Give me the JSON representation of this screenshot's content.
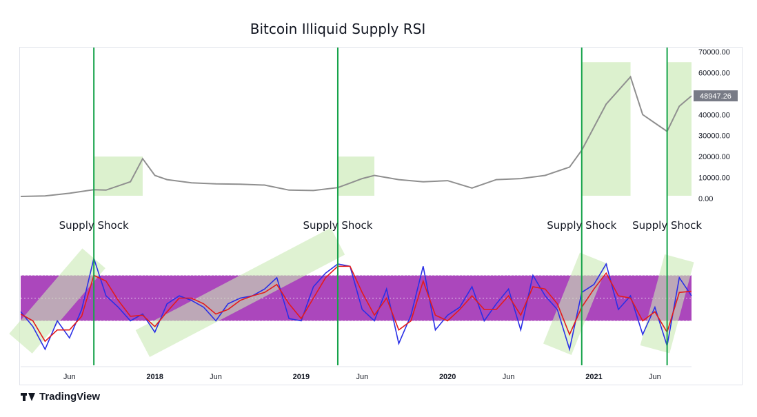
{
  "title": "Bitcoin Illiquid Supply RSI",
  "brand": "TradingView",
  "colors": {
    "price_line": "#8f8f8f",
    "rsi_blue": "#2a2fe6",
    "rsi_red": "#e31b1b",
    "rsi_band": "#9c27b0",
    "highlight": "#c9eab4",
    "shock_line": "#16a34a",
    "price_tag": "#787b86"
  },
  "chart_data": [
    {
      "type": "line",
      "title": "Bitcoin Illiquid Supply RSI",
      "y_axis_ticks": [
        "70000.00",
        "60000.00",
        "50000.00",
        "40000.00",
        "30000.00",
        "20000.00",
        "10000.00",
        "0.00"
      ],
      "ylim": [
        0,
        70000
      ],
      "last_value_label": "48947.26",
      "x_axis_ticks": [
        "Jun",
        "2018",
        "Jun",
        "2019",
        "Jun",
        "2020",
        "Jun",
        "2021",
        "Jun"
      ],
      "x_range": [
        "2017-02",
        "2021-09"
      ],
      "series": [
        {
          "x": [
            "2017-02",
            "2017-04",
            "2017-06",
            "2017-08",
            "2017-09",
            "2017-11",
            "2017-12",
            "2018-01",
            "2018-02",
            "2018-04",
            "2018-06",
            "2018-08",
            "2018-10",
            "2018-12",
            "2019-02",
            "2019-04",
            "2019-06",
            "2019-07",
            "2019-09",
            "2019-11",
            "2020-01",
            "2020-03",
            "2020-05",
            "2020-07",
            "2020-09",
            "2020-11",
            "2020-12",
            "2021-01",
            "2021-02",
            "2021-04",
            "2021-05",
            "2021-06",
            "2021-07",
            "2021-08",
            "2021-09"
          ],
          "values": [
            1000,
            1200,
            2500,
            4200,
            4000,
            8000,
            19000,
            11000,
            9000,
            7500,
            7000,
            6800,
            6400,
            4000,
            3800,
            5200,
            9500,
            11000,
            9000,
            8000,
            8500,
            5000,
            9000,
            9500,
            11000,
            15000,
            23000,
            34000,
            45000,
            58000,
            40000,
            36000,
            32000,
            44000,
            48947
          ]
        }
      ]
    },
    {
      "type": "line",
      "title": "",
      "series": [
        {
          "x": [
            "2017-02",
            "2017-03",
            "2017-04",
            "2017-05",
            "2017-06",
            "2017-07",
            "2017-08",
            "2017-09",
            "2017-10",
            "2017-11",
            "2017-12",
            "2018-01",
            "2018-02",
            "2018-03",
            "2018-04",
            "2018-05",
            "2018-06",
            "2018-07",
            "2018-08",
            "2018-09",
            "2018-10",
            "2018-11",
            "2018-12",
            "2019-01",
            "2019-02",
            "2019-03",
            "2019-04",
            "2019-05",
            "2019-06",
            "2019-07",
            "2019-08",
            "2019-09",
            "2019-10",
            "2019-11",
            "2019-12",
            "2020-01",
            "2020-02",
            "2020-03",
            "2020-04",
            "2020-05",
            "2020-06",
            "2020-07",
            "2020-08",
            "2020-09",
            "2020-10",
            "2020-11",
            "2020-12",
            "2021-01",
            "2021-02",
            "2021-03",
            "2021-04",
            "2021-05",
            "2021-06",
            "2021-07",
            "2021-08",
            "2021-09"
          ],
          "values": [
            38,
            25,
            5,
            30,
            15,
            40,
            85,
            52,
            42,
            30,
            36,
            20,
            45,
            52,
            48,
            42,
            30,
            45,
            50,
            52,
            58,
            68,
            32,
            30,
            60,
            72,
            80,
            78,
            40,
            30,
            58,
            10,
            35,
            78,
            22,
            35,
            42,
            60,
            30,
            45,
            58,
            22,
            70,
            52,
            40,
            5,
            55,
            62,
            80,
            40,
            52,
            18,
            42,
            8,
            68,
            52
          ]
        },
        {
          "x": [
            "2017-02",
            "2017-03",
            "2017-04",
            "2017-05",
            "2017-06",
            "2017-07",
            "2017-08",
            "2017-09",
            "2017-10",
            "2017-11",
            "2017-12",
            "2018-01",
            "2018-02",
            "2018-03",
            "2018-04",
            "2018-05",
            "2018-06",
            "2018-07",
            "2018-08",
            "2018-09",
            "2018-10",
            "2018-11",
            "2018-12",
            "2019-01",
            "2019-02",
            "2019-03",
            "2019-04",
            "2019-05",
            "2019-06",
            "2019-07",
            "2019-08",
            "2019-09",
            "2019-10",
            "2019-11",
            "2019-12",
            "2020-01",
            "2020-02",
            "2020-03",
            "2020-04",
            "2020-05",
            "2020-06",
            "2020-07",
            "2020-08",
            "2020-09",
            "2020-10",
            "2020-11",
            "2020-12",
            "2021-01",
            "2021-02",
            "2021-03",
            "2021-04",
            "2021-05",
            "2021-06",
            "2021-07",
            "2021-08",
            "2021-09"
          ],
          "values": [
            36,
            30,
            12,
            22,
            22,
            34,
            70,
            65,
            48,
            34,
            35,
            25,
            38,
            50,
            50,
            45,
            36,
            40,
            48,
            52,
            55,
            62,
            45,
            32,
            50,
            68,
            78,
            78,
            55,
            35,
            50,
            22,
            30,
            65,
            35,
            30,
            40,
            52,
            40,
            40,
            52,
            35,
            60,
            58,
            45,
            18,
            42,
            58,
            72,
            52,
            50,
            30,
            38,
            20,
            55,
            56
          ]
        }
      ],
      "x_axis_ticks": [
        "Jun",
        "2018",
        "Jun",
        "2019",
        "Jun",
        "2020",
        "Jun",
        "2021",
        "Jun"
      ]
    }
  ],
  "annotations": [
    {
      "label": "Supply Shock",
      "date": "2017-08"
    },
    {
      "label": "Supply Shock",
      "date": "2019-04"
    },
    {
      "label": "Supply Shock",
      "date": "2020-12"
    },
    {
      "label": "Supply Shock",
      "date": "2021-07"
    }
  ]
}
